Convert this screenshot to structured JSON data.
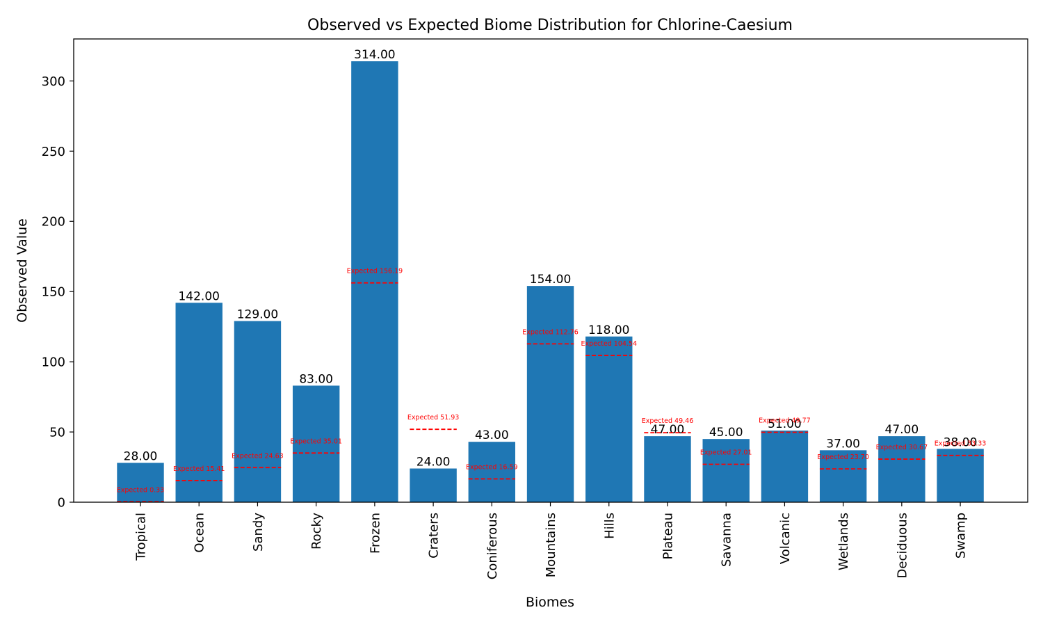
{
  "chart_data": {
    "type": "bar",
    "title": "Observed vs Expected Biome Distribution for Chlorine-Caesium",
    "xlabel": "Biomes",
    "ylabel": "Observed Value",
    "ylim": [
      0,
      330
    ],
    "yticks": [
      0,
      50,
      100,
      150,
      200,
      250,
      300
    ],
    "grid": false,
    "categories": [
      "Tropical",
      "Ocean",
      "Sandy",
      "Rocky",
      "Frozen",
      "Craters",
      "Coniferous",
      "Mountains",
      "Hills",
      "Plateau",
      "Savanna",
      "Volcanic",
      "Wetlands",
      "Deciduous",
      "Swamp"
    ],
    "values": [
      28,
      142,
      129,
      83,
      314,
      24,
      43,
      154,
      118,
      47,
      45,
      51,
      37,
      47,
      38
    ],
    "value_labels": [
      "28.00",
      "142.00",
      "129.00",
      "83.00",
      "314.00",
      "24.00",
      "43.00",
      "154.00",
      "118.00",
      "47.00",
      "45.00",
      "51.00",
      "37.00",
      "47.00",
      "38.00"
    ],
    "expected": [
      0.33,
      15.41,
      24.63,
      35.01,
      156.19,
      51.93,
      16.59,
      112.76,
      104.54,
      49.46,
      27.01,
      49.77,
      23.7,
      30.67,
      33.33
    ],
    "expected_labels": [
      "Expected 0.33",
      "Expected 15.41",
      "Expected 24.63",
      "Expected 35.01",
      "Expected 156.19",
      "Expected 51.93",
      "Expected 16.59",
      "Expected 112.76",
      "Expected 104.54",
      "Expected 49.46",
      "Expected 27.01",
      "Expected 49.77",
      "Expected 23.70",
      "Expected 30.67",
      "Expected 33.33"
    ],
    "colors": {
      "bar": "#1f77b4",
      "expected": "#ff0000"
    }
  }
}
